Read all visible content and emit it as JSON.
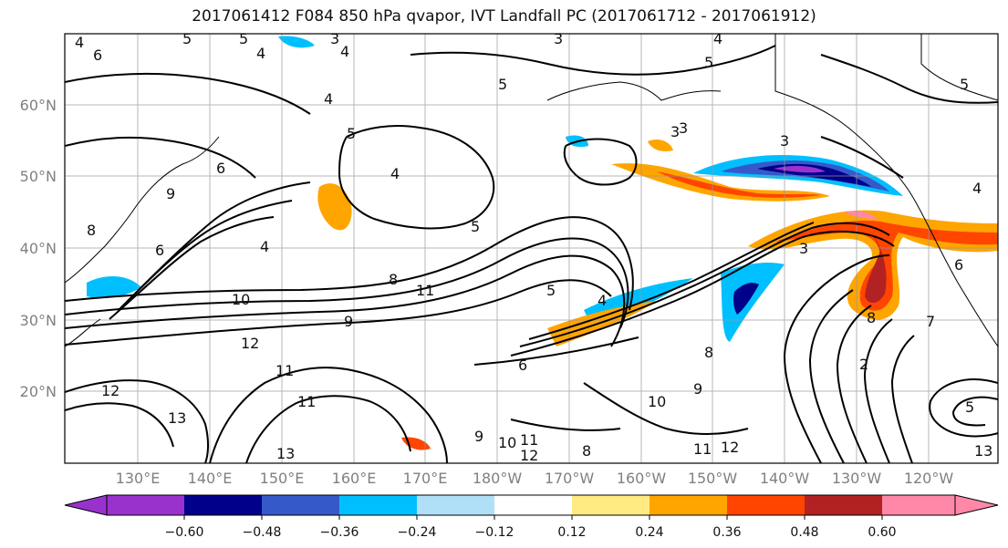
{
  "title": "2017061412 F084 850 hPa qvapor, IVT Landfall PC (2017061712 - 2017061912)",
  "map": {
    "lat_labels": [
      "60°N",
      "50°N",
      "40°N",
      "30°N",
      "20°N"
    ],
    "lon_labels": [
      "130°E",
      "140°E",
      "150°E",
      "160°E",
      "170°E",
      "180°W",
      "170°W",
      "160°W",
      "150°W",
      "140°W",
      "130°W",
      "120°W"
    ],
    "contour_labels": [
      "4",
      "5",
      "3",
      "4",
      "6",
      "5",
      "4",
      "5",
      "4",
      "3",
      "5",
      "4",
      "3",
      "6",
      "5",
      "4",
      "8",
      "9",
      "5",
      "4",
      "3",
      "5",
      "6",
      "8",
      "10",
      "11",
      "9",
      "12",
      "11",
      "11",
      "13",
      "12",
      "13",
      "9",
      "10",
      "11",
      "12",
      "8",
      "4",
      "5",
      "6",
      "8",
      "9",
      "10",
      "11",
      "12",
      "13",
      "3",
      "2",
      "6",
      "7",
      "8",
      "5",
      "3",
      "4"
    ]
  },
  "colorbar": {
    "ticks": [
      "−0.60",
      "−0.48",
      "−0.36",
      "−0.24",
      "−0.12",
      "0.12",
      "0.24",
      "0.36",
      "0.48",
      "0.60"
    ],
    "colors": [
      "#9932cc",
      "#00008b",
      "#3559c9",
      "#00bfff",
      "#b0e0f8",
      "#ffffff",
      "#ffeb82",
      "#ffa500",
      "#ff4500",
      "#b22222",
      "#ff88a8"
    ]
  }
}
